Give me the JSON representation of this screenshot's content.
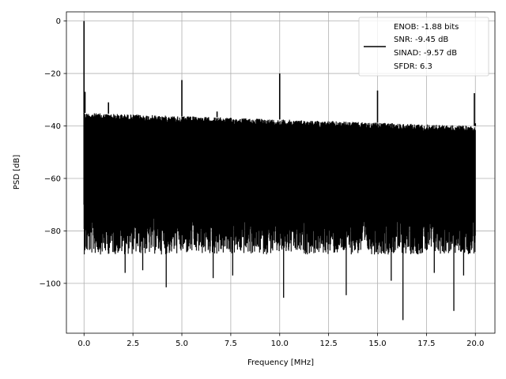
{
  "chart_data": {
    "type": "line",
    "title": "",
    "xlabel": "Frequency [MHz]",
    "ylabel": "PSD [dB]",
    "xlim": [
      -0.9,
      21.0
    ],
    "ylim": [
      -119.0,
      3.5
    ],
    "xticks": [
      0.0,
      2.5,
      5.0,
      7.5,
      10.0,
      12.5,
      15.0,
      17.5,
      20.0
    ],
    "xtick_labels": [
      "0.0",
      "2.5",
      "5.0",
      "7.5",
      "10.0",
      "12.5",
      "15.0",
      "17.5",
      "20.0"
    ],
    "yticks": [
      0,
      -20,
      -40,
      -60,
      -80,
      -100
    ],
    "ytick_labels": [
      "0",
      "−20",
      "−40",
      "−60",
      "−80",
      "−100"
    ],
    "grid": true,
    "legend_position": "top-right",
    "line_color": "#000000",
    "series": [
      {
        "name": "ENOB: -1.88 bits\nSNR: -9.45 dB\nSINAD: -9.57 dB\nSFDR: 6.3",
        "legend_lines": [
          "ENOB: -1.88 bits",
          "SNR: -9.45 dB",
          "SINAD: -9.57 dB",
          "SFDR: 6.3"
        ],
        "noise_floor": {
          "x_start": 0.0,
          "x_end": 20.0,
          "upper_start": -35,
          "upper_end": -40,
          "lower_typical": -83
        },
        "spurs": [
          {
            "x": 0.0,
            "y": 0.0
          },
          {
            "x": 0.05,
            "y": -27.0
          },
          {
            "x": 1.25,
            "y": -31.0
          },
          {
            "x": 5.0,
            "y": -22.5
          },
          {
            "x": 6.8,
            "y": -34.5
          },
          {
            "x": 10.0,
            "y": -20.0
          },
          {
            "x": 15.0,
            "y": -26.5
          },
          {
            "x": 19.95,
            "y": -27.5
          },
          {
            "x": 20.0,
            "y": -39.0
          }
        ],
        "notches": [
          {
            "x": 2.1,
            "y": -96.0
          },
          {
            "x": 3.0,
            "y": -95.0
          },
          {
            "x": 4.2,
            "y": -101.5
          },
          {
            "x": 6.6,
            "y": -98.0
          },
          {
            "x": 7.6,
            "y": -97.0
          },
          {
            "x": 10.2,
            "y": -105.5
          },
          {
            "x": 13.4,
            "y": -104.5
          },
          {
            "x": 15.7,
            "y": -99.0
          },
          {
            "x": 16.3,
            "y": -114.0
          },
          {
            "x": 17.9,
            "y": -96.0
          },
          {
            "x": 18.9,
            "y": -110.5
          },
          {
            "x": 19.4,
            "y": -97.0
          }
        ]
      }
    ]
  }
}
